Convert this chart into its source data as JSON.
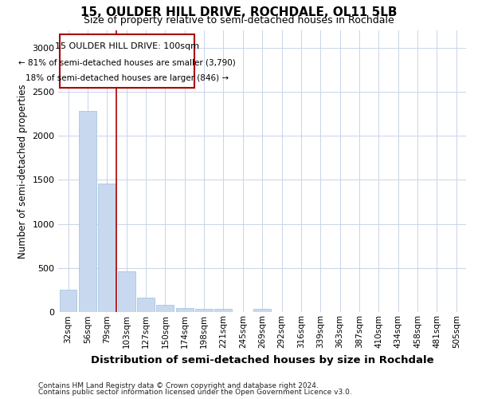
{
  "title1": "15, OULDER HILL DRIVE, ROCHDALE, OL11 5LB",
  "title2": "Size of property relative to semi-detached houses in Rochdale",
  "xlabel": "Distribution of semi-detached houses by size in Rochdale",
  "ylabel": "Number of semi-detached properties",
  "footnote1": "Contains HM Land Registry data © Crown copyright and database right 2024.",
  "footnote2": "Contains public sector information licensed under the Open Government Licence v3.0.",
  "categories": [
    "32sqm",
    "56sqm",
    "79sqm",
    "103sqm",
    "127sqm",
    "150sqm",
    "174sqm",
    "198sqm",
    "221sqm",
    "245sqm",
    "269sqm",
    "292sqm",
    "316sqm",
    "339sqm",
    "363sqm",
    "387sqm",
    "410sqm",
    "434sqm",
    "458sqm",
    "481sqm",
    "505sqm"
  ],
  "values": [
    255,
    2280,
    1460,
    460,
    165,
    85,
    50,
    42,
    38,
    0,
    35,
    0,
    0,
    0,
    0,
    0,
    0,
    0,
    0,
    0,
    0
  ],
  "bar_color": "#c8d8ef",
  "bar_edge_color": "#9dbfdf",
  "grid_color": "#c8d4e8",
  "vline_color": "#aa0000",
  "vline_pos": 2.5,
  "property_label": "15 OULDER HILL DRIVE: 100sqm",
  "pct_smaller": "81%",
  "n_smaller": "3,790",
  "pct_larger": "18%",
  "n_larger": "846",
  "annotation_box_color": "#aa0000",
  "ylim": [
    0,
    3200
  ],
  "yticks": [
    0,
    500,
    1000,
    1500,
    2000,
    2500,
    3000
  ],
  "background_color": "#ffffff"
}
